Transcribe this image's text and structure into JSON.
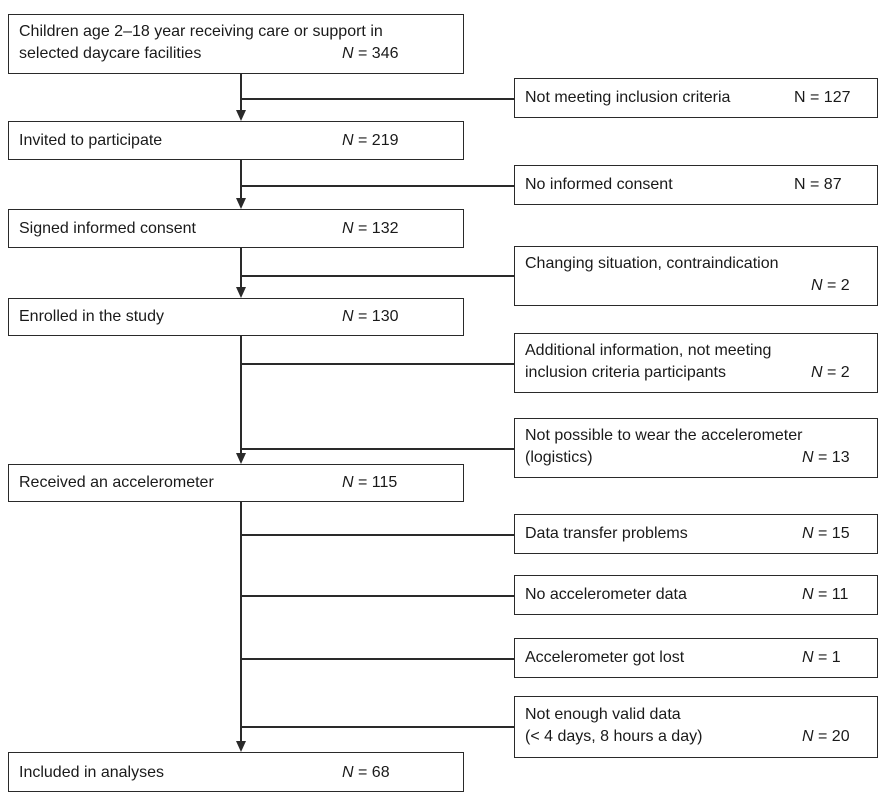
{
  "main_boxes": [
    {
      "lines": [
        "Children age 2–18 year receiving care or support in",
        "selected daycare facilities"
      ],
      "n_sym": "N",
      "n_val": " = 346"
    },
    {
      "lines": [
        "Invited to participate"
      ],
      "n_sym": "N",
      "n_val": " = 219"
    },
    {
      "lines": [
        "Signed informed consent"
      ],
      "n_sym": "N",
      "n_val": " = 132"
    },
    {
      "lines": [
        "Enrolled in the study"
      ],
      "n_sym": "N",
      "n_val": " = 130"
    },
    {
      "lines": [
        "Received an accelerometer"
      ],
      "n_sym": "N",
      "n_val": " = 115"
    },
    {
      "lines": [
        "Included in analyses"
      ],
      "n_sym": "N",
      "n_val": " = 68"
    }
  ],
  "exclusion_boxes": [
    {
      "lines": [
        "Not meeting inclusion criteria"
      ],
      "n_sym": "N",
      "n_val": " = 127"
    },
    {
      "lines": [
        "No informed consent"
      ],
      "n_sym": "N",
      "n_val": " = 87"
    },
    {
      "lines": [
        "Changing situation, contraindication"
      ],
      "n_sym": "N",
      "n_val": " = 2"
    },
    {
      "lines": [
        "Additional information, not meeting",
        "inclusion criteria participants"
      ],
      "n_sym": "N",
      "n_val": " = 2"
    },
    {
      "lines": [
        "Not possible to wear the accelerometer",
        "(logistics)"
      ],
      "n_sym": "N",
      "n_val": " = 13"
    },
    {
      "lines": [
        "Data transfer problems"
      ],
      "n_sym": "N",
      "n_val": " = 15"
    },
    {
      "lines": [
        "No accelerometer data"
      ],
      "n_sym": "N",
      "n_val": " = 11"
    },
    {
      "lines": [
        "Accelerometer got lost"
      ],
      "n_sym": "N",
      "n_val": " = 1"
    },
    {
      "lines": [
        "Not enough valid data",
        "(< 4 days, 8 hours a day)"
      ],
      "n_sym": "N",
      "n_val": " = 20"
    }
  ]
}
